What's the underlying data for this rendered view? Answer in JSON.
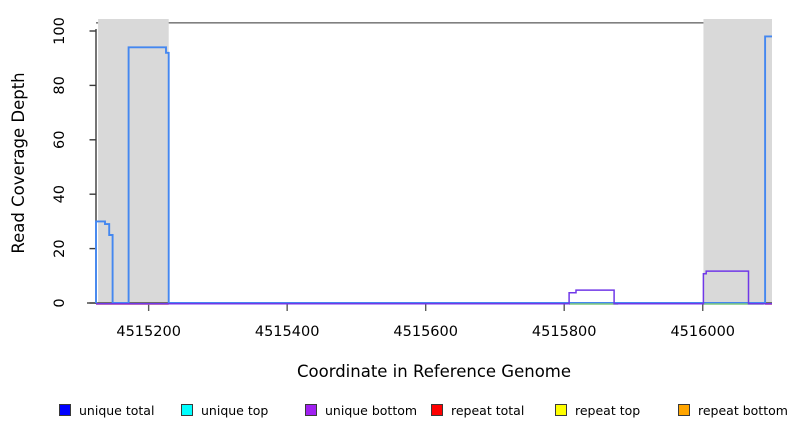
{
  "chart_data": {
    "type": "line",
    "title": "",
    "xlabel": "Coordinate in Reference Genome",
    "ylabel": "Read Coverage Depth",
    "xlim": [
      4515124,
      4516100
    ],
    "ylim": [
      0,
      100
    ],
    "x_ticks": [
      4515200,
      4515400,
      4515600,
      4515800,
      4516000
    ],
    "y_ticks": [
      0,
      20,
      40,
      60,
      80,
      100
    ],
    "grid": false,
    "legend_position": "bottom",
    "background_color": "#ffffff",
    "repeat_region_fill": "#d9d9d9",
    "reference_line": {
      "y": 103,
      "color": "#808080"
    },
    "repeat_regions": [
      [
        4515127,
        4515229
      ],
      [
        4516001,
        4516100
      ]
    ],
    "series": [
      {
        "name": "repeat total",
        "color": "#f07878",
        "polylines": [
          [
            [
              4515124,
              0
            ],
            [
              4515229,
              0
            ]
          ],
          [
            [
              4516090,
              0
            ],
            [
              4516100,
              0
            ]
          ]
        ]
      },
      {
        "name": "unique total",
        "color": "#4487f0",
        "polylines": [
          [
            [
              4515124,
              0
            ],
            [
              4515124,
              30
            ],
            [
              4515137,
              30
            ],
            [
              4515137,
              29
            ],
            [
              4515143,
              29
            ],
            [
              4515143,
              25
            ],
            [
              4515148,
              25
            ],
            [
              4515148,
              0
            ],
            [
              4515171,
              0
            ],
            [
              4515171,
              94
            ],
            [
              4515225,
              94
            ],
            [
              4515225,
              92
            ],
            [
              4515229,
              92
            ],
            [
              4515229,
              0
            ],
            [
              4516090,
              0
            ],
            [
              4516090,
              98
            ],
            [
              4516100,
              98
            ]
          ]
        ]
      },
      {
        "name": "unique top",
        "color": "#7ec87e",
        "polylines": [
          [
            [
              4515807,
              0
            ],
            [
              4515878,
              0
            ]
          ],
          [
            [
              4516001,
              0
            ],
            [
              4516088,
              0
            ]
          ]
        ]
      },
      {
        "name": "unique bottom",
        "color": "#7038e8",
        "polylines": [
          [
            [
              4515124,
              0
            ],
            [
              4515807,
              0
            ],
            [
              4515807,
              4
            ],
            [
              4515817,
              4
            ],
            [
              4515817,
              5
            ],
            [
              4515872,
              5
            ],
            [
              4515872,
              0
            ],
            [
              4516001,
              0
            ],
            [
              4516001,
              11
            ],
            [
              4516005,
              11
            ],
            [
              4516005,
              12
            ],
            [
              4516066,
              12
            ],
            [
              4516066,
              0
            ],
            [
              4516100,
              0
            ]
          ]
        ]
      },
      {
        "name": "repeat top",
        "color": "#ffff00",
        "polylines": []
      },
      {
        "name": "repeat bottom",
        "color": "#ffa500",
        "polylines": []
      }
    ]
  },
  "legend": {
    "items": [
      {
        "label": "unique total",
        "color": "#0000ff"
      },
      {
        "label": "unique top",
        "color": "#00ffff"
      },
      {
        "label": "unique bottom",
        "color": "#a020f0"
      },
      {
        "label": "repeat total",
        "color": "#ff0000"
      },
      {
        "label": "repeat top",
        "color": "#ffff00"
      },
      {
        "label": "repeat bottom",
        "color": "#ffa500"
      }
    ]
  }
}
